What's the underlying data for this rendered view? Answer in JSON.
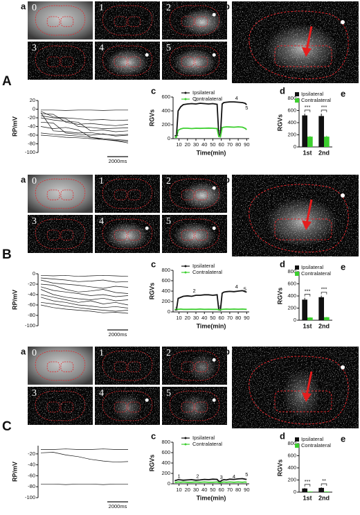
{
  "panels": [
    {
      "label": "A",
      "sublabels": {
        "a": "a",
        "b": "b",
        "c": "c",
        "d": "d",
        "e": "e"
      },
      "frames": [
        "0",
        "1",
        "2",
        "3",
        "4",
        "5"
      ]
    },
    {
      "label": "B",
      "sublabels": {
        "a": "a",
        "b": "b",
        "c": "c",
        "d": "d",
        "e": "e"
      },
      "frames": [
        "0",
        "1",
        "2",
        "3",
        "4",
        "5"
      ]
    },
    {
      "label": "C",
      "sublabels": {
        "a": "a",
        "b": "b",
        "c": "c",
        "d": "d",
        "e": "e"
      },
      "frames": [
        "0",
        "1",
        "2",
        "3",
        "4",
        "5"
      ]
    }
  ],
  "chart_data": [
    {
      "type": "trace",
      "ylabel": "RP/mV",
      "ylim": [
        -100,
        20
      ],
      "yticks": [
        20,
        0,
        -20,
        -40,
        -60,
        -80,
        -100
      ],
      "scale_bar": "2000ms",
      "series": [
        {
          "color": "#111",
          "values": [
            -2,
            -2,
            -3,
            -2,
            -2,
            -3,
            -2,
            -2
          ]
        },
        {
          "color": "#111",
          "values": [
            -5,
            -18,
            -20,
            -22,
            -25,
            -24,
            -26,
            -25
          ]
        },
        {
          "color": "#111",
          "values": [
            -10,
            -12,
            -30,
            -35,
            -33,
            -36,
            -38,
            -35
          ]
        },
        {
          "color": "#111",
          "values": [
            -15,
            -20,
            -22,
            -40,
            -42,
            -45,
            -44,
            -43
          ]
        },
        {
          "color": "#111",
          "values": [
            -20,
            -25,
            -28,
            -30,
            -50,
            -48,
            -52,
            -50
          ]
        },
        {
          "color": "#111",
          "values": [
            -30,
            -32,
            -55,
            -58,
            -60,
            -57,
            -62,
            -60
          ]
        },
        {
          "color": "#111",
          "values": [
            -40,
            -45,
            -42,
            -48,
            -65,
            -68,
            -70,
            -72
          ]
        },
        {
          "color": "#111",
          "values": [
            -8,
            -50,
            -52,
            -55,
            -54,
            -58,
            -60,
            -58
          ]
        },
        {
          "color": "#111",
          "values": [
            -55,
            -58,
            -60,
            -62,
            -65,
            -70,
            -72,
            -75
          ]
        },
        {
          "color": "#111",
          "values": [
            -60,
            -62,
            -65,
            -66,
            -68,
            -70,
            -73,
            -78
          ]
        }
      ]
    },
    {
      "type": "line",
      "ylabel": "RGVs",
      "xlabel": "Time(min)",
      "xlim": [
        3,
        93
      ],
      "xticks": [
        10,
        20,
        30,
        40,
        50,
        60,
        70,
        80,
        90
      ],
      "ylim": [
        0,
        600
      ],
      "yticks": [
        0,
        200,
        400,
        600
      ],
      "x": [
        5,
        7,
        9,
        12,
        15,
        20,
        25,
        30,
        35,
        40,
        45,
        50,
        55,
        57,
        59,
        61,
        63,
        66,
        70,
        75,
        80,
        85,
        88,
        90
      ],
      "series": [
        {
          "name": "Ipsilateral",
          "color": "#111",
          "values": [
            40,
            45,
            400,
            460,
            490,
            500,
            505,
            500,
            510,
            505,
            500,
            505,
            495,
            60,
            45,
            500,
            520,
            525,
            530,
            530,
            525,
            520,
            510,
            490
          ]
        },
        {
          "name": "Contralateral",
          "color": "#3ccf2e",
          "values": [
            20,
            20,
            120,
            140,
            150,
            150,
            145,
            150,
            148,
            150,
            152,
            150,
            145,
            30,
            25,
            160,
            165,
            170,
            168,
            165,
            170,
            165,
            150,
            130
          ]
        }
      ],
      "annotations": [
        {
          "text": "1",
          "x": 8,
          "y": 60
        },
        {
          "text": "2",
          "x": 30,
          "y": 560
        },
        {
          "text": "3",
          "x": 58,
          "y": 90
        },
        {
          "text": "4",
          "x": 78,
          "y": 580
        },
        {
          "text": "5",
          "x": 90,
          "y": 440
        }
      ]
    },
    {
      "type": "bar",
      "ylabel": "RGVs",
      "categories": [
        "1st",
        "2nd"
      ],
      "ylim": [
        0,
        800
      ],
      "yticks": [
        0,
        200,
        400,
        600,
        800
      ],
      "series": [
        {
          "name": "Ipsilateral",
          "color": "#111",
          "values": [
            520,
            510
          ],
          "errors": [
            30,
            40
          ]
        },
        {
          "name": "Contralateral",
          "color": "#3ccf2e",
          "values": [
            170,
            170
          ],
          "errors": [
            10,
            15
          ]
        }
      ],
      "significance": [
        "***",
        "***"
      ]
    },
    {
      "type": "trace",
      "ylabel": "RP/mV",
      "ylim": [
        -100,
        0
      ],
      "yticks": [
        0,
        -20,
        -40,
        -60,
        -80,
        -100
      ],
      "scale_bar": "2000ms",
      "series": [
        {
          "color": "#111",
          "values": [
            -3,
            -4,
            -3,
            -5,
            -4,
            -3,
            -4,
            -5
          ]
        },
        {
          "color": "#111",
          "values": [
            -8,
            -10,
            -12,
            -15,
            -14,
            -12,
            -16,
            -15
          ]
        },
        {
          "color": "#111",
          "values": [
            -12,
            -18,
            -20,
            -22,
            -25,
            -28,
            -24,
            -26
          ]
        },
        {
          "color": "#111",
          "values": [
            -20,
            -22,
            -30,
            -35,
            -33,
            -30,
            -36,
            -38
          ]
        },
        {
          "color": "#111",
          "values": [
            -25,
            -32,
            -35,
            -38,
            -42,
            -40,
            -44,
            -42
          ]
        },
        {
          "color": "#111",
          "values": [
            -30,
            -40,
            -45,
            -48,
            -50,
            -47,
            -52,
            -50
          ]
        },
        {
          "color": "#111",
          "values": [
            -40,
            -45,
            -50,
            -55,
            -52,
            -58,
            -55,
            -60
          ]
        },
        {
          "color": "#111",
          "values": [
            -45,
            -52,
            -55,
            -60,
            -62,
            -65,
            -63,
            -66
          ]
        },
        {
          "color": "#111",
          "values": [
            -55,
            -58,
            -62,
            -65,
            -68,
            -70,
            -72,
            -70
          ]
        },
        {
          "color": "#111",
          "values": [
            -60,
            -65,
            -68,
            -70,
            -72,
            -75,
            -74,
            -76
          ]
        }
      ]
    },
    {
      "type": "line",
      "ylabel": "RGVs",
      "xlabel": "Time(min)",
      "xlim": [
        3,
        93
      ],
      "xticks": [
        10,
        20,
        30,
        40,
        50,
        60,
        70,
        80,
        90
      ],
      "ylim": [
        0,
        800
      ],
      "yticks": [
        0,
        200,
        400,
        600,
        800
      ],
      "x": [
        5,
        7,
        9,
        12,
        15,
        20,
        25,
        30,
        35,
        40,
        45,
        50,
        55,
        57,
        59,
        61,
        63,
        66,
        70,
        75,
        80,
        85,
        88,
        90
      ],
      "series": [
        {
          "name": "Ipsilateral",
          "color": "#111",
          "values": [
            40,
            40,
            260,
            280,
            300,
            310,
            300,
            320,
            320,
            330,
            330,
            320,
            330,
            40,
            35,
            360,
            380,
            390,
            395,
            390,
            400,
            410,
            390,
            380
          ]
        },
        {
          "name": "Contralateral",
          "color": "#3ccf2e",
          "values": [
            50,
            50,
            50,
            55,
            50,
            50,
            52,
            50,
            55,
            50,
            52,
            50,
            50,
            40,
            40,
            50,
            52,
            55,
            52,
            55,
            52,
            55,
            52,
            50
          ]
        }
      ],
      "annotations": [
        {
          "text": "1",
          "x": 7,
          "y": 60
        },
        {
          "text": "2",
          "x": 28,
          "y": 400
        },
        {
          "text": "3",
          "x": 58,
          "y": 80
        },
        {
          "text": "4",
          "x": 78,
          "y": 480
        },
        {
          "text": "5",
          "x": 88,
          "y": 430
        }
      ]
    },
    {
      "type": "bar",
      "ylabel": "RGVs",
      "categories": [
        "1st",
        "2nd"
      ],
      "ylim": [
        0,
        800
      ],
      "yticks": [
        0,
        200,
        400,
        600,
        800
      ],
      "series": [
        {
          "name": "Ipsilateral",
          "color": "#111",
          "values": [
            340,
            380
          ],
          "errors": [
            30,
            25
          ]
        },
        {
          "name": "Contralateral",
          "color": "#3ccf2e",
          "values": [
            45,
            50
          ],
          "errors": [
            5,
            5
          ]
        }
      ],
      "significance": [
        "***",
        "***"
      ]
    },
    {
      "type": "trace",
      "ylabel": "RP/mV",
      "ylim": [
        -100,
        -5
      ],
      "yticks": [
        -20,
        -40,
        -60,
        -80,
        -100
      ],
      "scale_bar": "2000ms",
      "series": [
        {
          "color": "#111",
          "values": [
            -12,
            -12,
            -11,
            -12,
            -12,
            -11,
            -12,
            -12
          ]
        },
        {
          "color": "#111",
          "values": [
            -18,
            -17,
            -22,
            -25,
            -30,
            -33,
            -35,
            -34
          ]
        },
        {
          "color": "#111",
          "values": [
            -75,
            -75,
            -76,
            -75,
            -75,
            -76,
            -75,
            -75
          ]
        }
      ]
    },
    {
      "type": "line",
      "ylabel": "RGVs",
      "xlabel": "Time(min)",
      "xlim": [
        3,
        93
      ],
      "xticks": [
        10,
        20,
        30,
        40,
        50,
        60,
        70,
        80,
        90
      ],
      "ylim": [
        0,
        800
      ],
      "yticks": [
        0,
        200,
        400,
        600,
        800
      ],
      "x": [
        5,
        7,
        9,
        12,
        15,
        20,
        25,
        30,
        35,
        40,
        45,
        50,
        55,
        57,
        59,
        61,
        63,
        66,
        70,
        75,
        80,
        85,
        88,
        90
      ],
      "series": [
        {
          "name": "Ipsilateral",
          "color": "#111",
          "values": [
            60,
            70,
            80,
            75,
            70,
            75,
            80,
            70,
            75,
            85,
            80,
            90,
            85,
            50,
            45,
            70,
            80,
            75,
            90,
            85,
            95,
            100,
            90,
            85
          ]
        },
        {
          "name": "Contralateral",
          "color": "#3ccf2e",
          "values": [
            30,
            30,
            35,
            30,
            35,
            30,
            30,
            35,
            30,
            35,
            30,
            30,
            35,
            25,
            20,
            30,
            35,
            30,
            35,
            30,
            35,
            30,
            35,
            30
          ]
        }
      ],
      "annotations": [
        {
          "text": "1",
          "x": 10,
          "y": 140
        },
        {
          "text": "2",
          "x": 32,
          "y": 140
        },
        {
          "text": "3",
          "x": 60,
          "y": 120
        },
        {
          "text": "4",
          "x": 75,
          "y": 130
        },
        {
          "text": "5",
          "x": 90,
          "y": 170
        }
      ]
    },
    {
      "type": "bar",
      "ylabel": "RGVs",
      "categories": [
        "1st",
        "2nd"
      ],
      "ylim": [
        0,
        800
      ],
      "yticks": [
        0,
        200,
        400,
        600,
        800
      ],
      "series": [
        {
          "name": "Ipsilateral",
          "color": "#111",
          "values": [
            60,
            70
          ],
          "errors": [
            10,
            10
          ]
        },
        {
          "name": "Contralateral",
          "color": "#3ccf2e",
          "values": [
            10,
            10
          ],
          "errors": [
            3,
            3
          ]
        }
      ],
      "significance": [
        "***",
        "**"
      ]
    }
  ]
}
